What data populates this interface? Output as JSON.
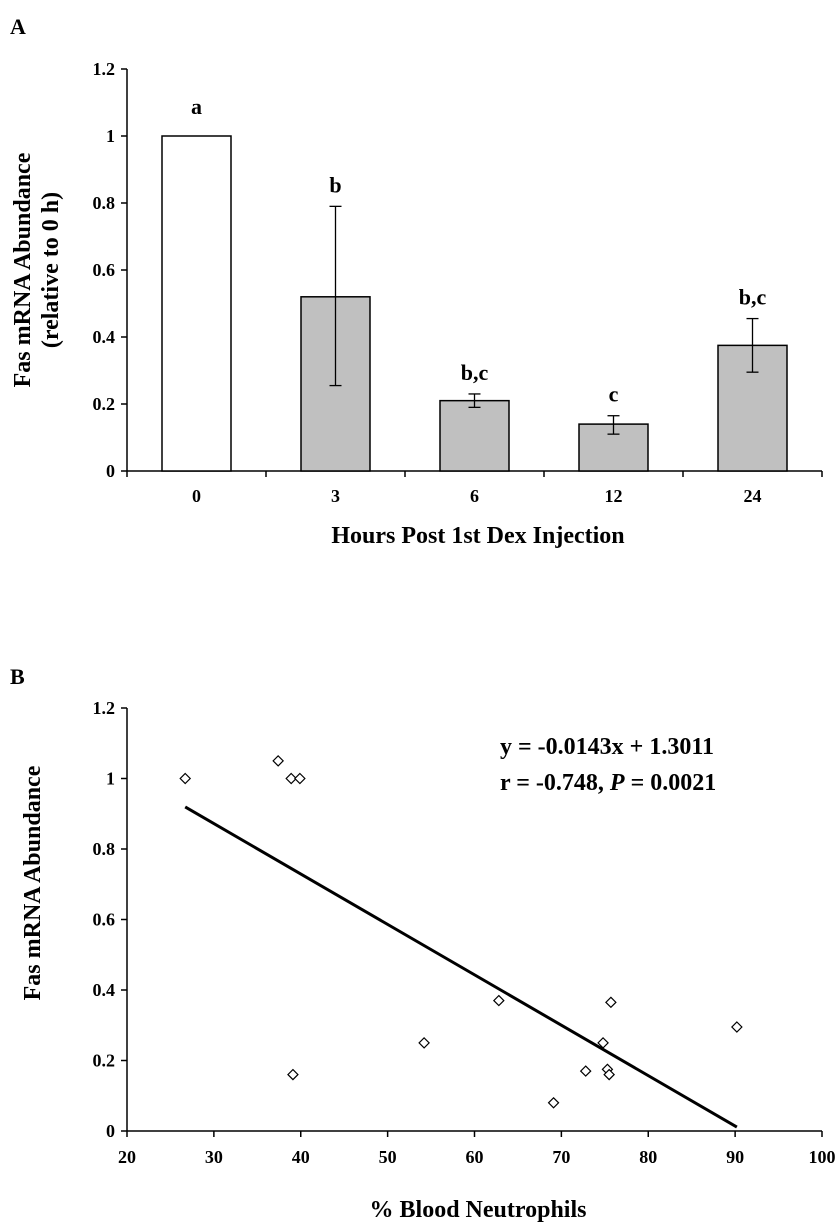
{
  "chart_data": [
    {
      "panel_label": "A",
      "type": "bar",
      "xlabel": "Hours Post 1st Dex Injection",
      "ylabel_line1": "Fas mRNA Abundance",
      "ylabel_line2": "(relative to 0 h)",
      "ylim": [
        0,
        1.2
      ],
      "yticks": [
        "0",
        "0.2",
        "0.4",
        "0.6",
        "0.8",
        "1",
        "1.2"
      ],
      "categories": [
        "0",
        "3",
        "6",
        "12",
        "24"
      ],
      "values": [
        1.0,
        0.52,
        0.21,
        0.14,
        0.375
      ],
      "error_upper": [
        null,
        0.79,
        0.23,
        0.165,
        0.455
      ],
      "error_lower": [
        null,
        0.255,
        0.19,
        0.11,
        0.295
      ],
      "significance_labels": [
        "a",
        "b",
        "b,c",
        "c",
        "b,c"
      ],
      "bar_colors": [
        "#ffffff",
        "#c0c0c0",
        "#c0c0c0",
        "#c0c0c0",
        "#c0c0c0"
      ],
      "grid": false
    },
    {
      "panel_label": "B",
      "type": "scatter",
      "xlabel": "% Blood Neutrophils",
      "ylabel": "Fas mRNA Abundance",
      "xlim": [
        20,
        100
      ],
      "ylim": [
        0,
        1.2
      ],
      "xticks": [
        "20",
        "30",
        "40",
        "50",
        "60",
        "70",
        "80",
        "90",
        "100"
      ],
      "yticks": [
        "0",
        "0.2",
        "0.4",
        "0.6",
        "0.8",
        "1",
        "1.2"
      ],
      "points": [
        {
          "x": 26.7,
          "y": 1.0
        },
        {
          "x": 37.4,
          "y": 1.05
        },
        {
          "x": 38.9,
          "y": 1.0
        },
        {
          "x": 39.9,
          "y": 1.0
        },
        {
          "x": 39.1,
          "y": 0.16
        },
        {
          "x": 54.2,
          "y": 0.25
        },
        {
          "x": 62.8,
          "y": 0.37
        },
        {
          "x": 69.1,
          "y": 0.08
        },
        {
          "x": 72.8,
          "y": 0.17
        },
        {
          "x": 74.8,
          "y": 0.25
        },
        {
          "x": 75.3,
          "y": 0.175
        },
        {
          "x": 75.5,
          "y": 0.16
        },
        {
          "x": 75.7,
          "y": 0.365
        },
        {
          "x": 90.2,
          "y": 0.295
        }
      ],
      "trendline": {
        "slope": -0.0143,
        "intercept": 1.3011,
        "x_start": 26.7,
        "x_end": 90.2
      },
      "equation_text": "y = -0.0143x + 1.3011",
      "stats_prefix": "r = -0.748, ",
      "stats_p": "P",
      "stats_suffix": " = 0.0021",
      "grid": false
    }
  ]
}
